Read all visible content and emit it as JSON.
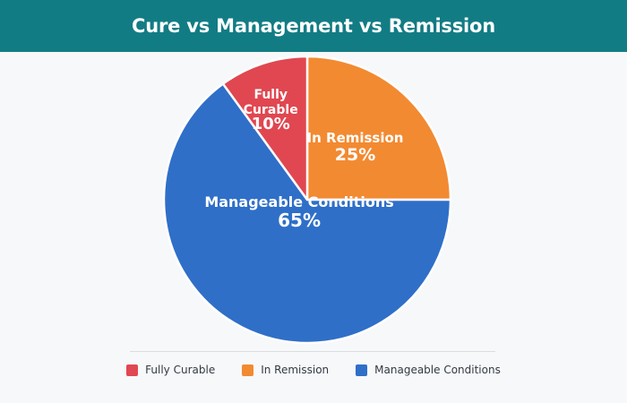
{
  "header": {
    "title": "Cure vs Management vs Remission"
  },
  "chart_data": {
    "type": "pie",
    "title": "Cure vs Management vs Remission",
    "slices": [
      {
        "label": "In Remission",
        "value": 25,
        "display": "25%",
        "color": "#f28a32"
      },
      {
        "label": "Manageable Conditions",
        "value": 65,
        "display": "65%",
        "color": "#2f6fc8"
      },
      {
        "label": "Fully Curable",
        "value": 10,
        "display": "10%",
        "color": "#e04751"
      }
    ],
    "slice_labels": [
      {
        "lines": [
          "In Remission"
        ],
        "value": "25%"
      },
      {
        "lines": [
          "Manageable Conditions"
        ],
        "value": "65%"
      },
      {
        "lines": [
          "Fully",
          "Curable"
        ],
        "value": "10%"
      }
    ],
    "legend": {
      "position": "bottom",
      "items": [
        {
          "label": "Fully Curable",
          "color": "#e04751"
        },
        {
          "label": "In Remission",
          "color": "#f28a32"
        },
        {
          "label": "Manageable Conditions",
          "color": "#2f6fc8"
        }
      ]
    }
  }
}
